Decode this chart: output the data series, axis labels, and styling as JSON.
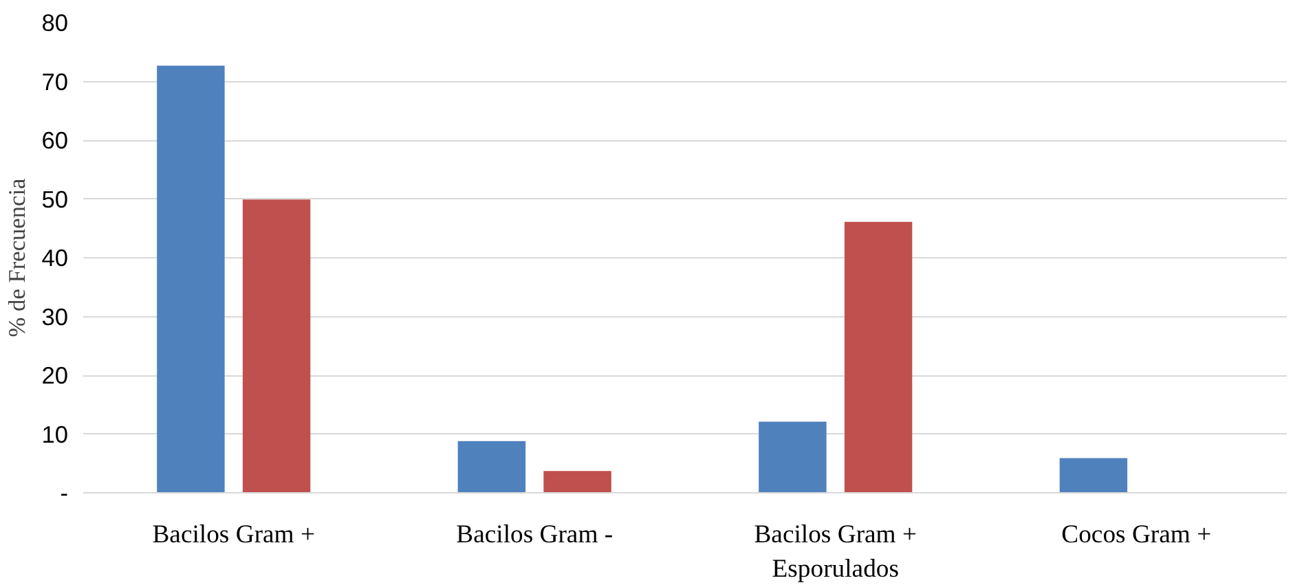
{
  "chart_data": {
    "type": "bar",
    "ylabel": "% de Frecuencia",
    "categories": [
      "Bacilos Gram +",
      "Bacilos Gram -",
      "Bacilos Gram + Esporulados",
      "Cocos Gram +"
    ],
    "series": [
      {
        "color": "#4f81bd",
        "values": [
          72.7,
          8.8,
          12.1,
          5.9
        ]
      },
      {
        "color": "#c0504d",
        "values": [
          49.9,
          3.7,
          46.1,
          null
        ]
      }
    ],
    "ylim": [
      0,
      80
    ],
    "yticks": [
      {
        "value": 0,
        "label": "-"
      },
      10,
      20,
      30,
      40,
      50,
      60,
      70,
      80
    ],
    "grid": "y"
  }
}
